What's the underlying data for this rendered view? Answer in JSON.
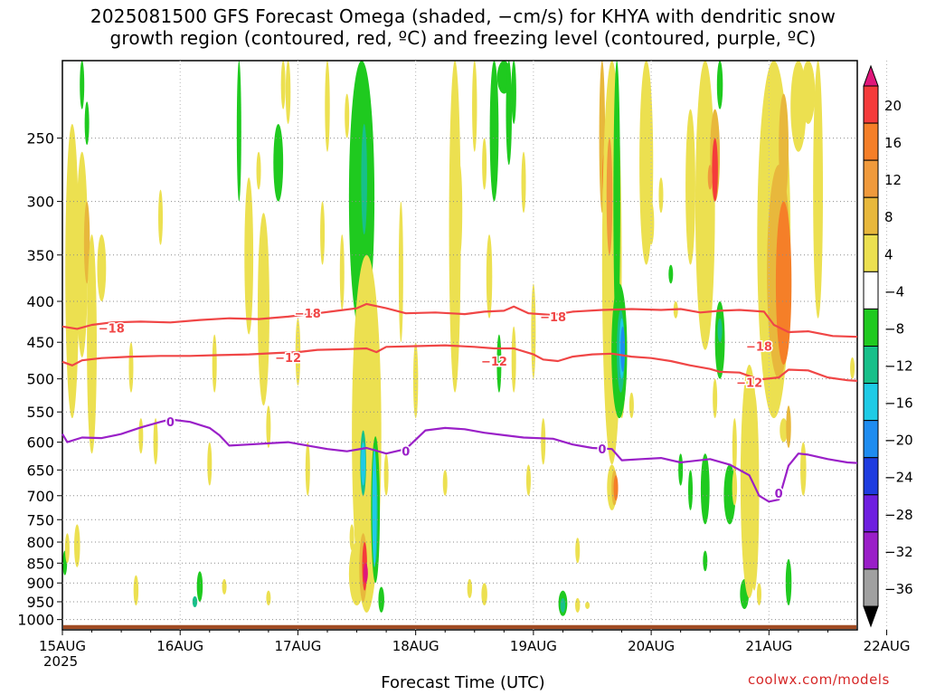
{
  "title_line1": "2025081500 GFS Forecast Omega (shaded, −cm/s) for KHYA with dendritic snow",
  "title_line2": "growth region (contoured, red, ºC) and freezing level (contoured, purple, ºC)",
  "credit": "coolwx.com/models",
  "chart_data": {
    "type": "heatmap",
    "title": "2025081500 GFS Forecast Omega (shaded, −cm/s) for KHYA with dendritic snow growth region (contoured, red, ºC) and freezing level (contoured, purple, ºC)",
    "xlabel": "Forecast Time (UTC)",
    "x_sublabel": "2025",
    "x_ticks": [
      "15AUG",
      "16AUG",
      "17AUG",
      "18AUG",
      "19AUG",
      "20AUG",
      "21AUG",
      "22AUG"
    ],
    "x_range_hours": [
      0,
      162
    ],
    "y_ticks": [
      250,
      300,
      350,
      400,
      450,
      500,
      550,
      600,
      650,
      700,
      750,
      800,
      850,
      900,
      950,
      1000
    ],
    "y_range_hPa": [
      200,
      1030
    ],
    "y_scale": "log (pressure, inverted)",
    "grid": true,
    "colorbar": {
      "labels": [
        "20",
        "16",
        "12",
        "8",
        "4",
        "−4",
        "−8",
        "−12",
        "−16",
        "−20",
        "−24",
        "−28",
        "−32",
        "−36"
      ],
      "colors": [
        "#e0177a",
        "#f53b3b",
        "#f57f28",
        "#f09a3c",
        "#e8b83c",
        "#ece050",
        "#ffffff",
        "#1fca1f",
        "#17c08a",
        "#1ecbe6",
        "#1e8cf0",
        "#1e3ce0",
        "#6e1ee0",
        "#9a1ec8",
        "#a0a0a0",
        "#000000"
      ]
    },
    "contours": [
      {
        "name": "dendritic -18",
        "color": "#f04646",
        "label": "−18",
        "points": [
          [
            0,
            430
          ],
          [
            3,
            433
          ],
          [
            6,
            428
          ],
          [
            10,
            425
          ],
          [
            16,
            424
          ],
          [
            22,
            425
          ],
          [
            28,
            422
          ],
          [
            34,
            420
          ],
          [
            40,
            421
          ],
          [
            46,
            418
          ],
          [
            52,
            414
          ],
          [
            56,
            411
          ],
          [
            60,
            408
          ],
          [
            62,
            403
          ],
          [
            66,
            408
          ],
          [
            70,
            414
          ],
          [
            76,
            413
          ],
          [
            82,
            415
          ],
          [
            86,
            412
          ],
          [
            90,
            411
          ],
          [
            92,
            406
          ],
          [
            95,
            414
          ],
          [
            100,
            416
          ],
          [
            104,
            412
          ],
          [
            110,
            410
          ],
          [
            116,
            409
          ],
          [
            122,
            410
          ],
          [
            126,
            409
          ],
          [
            130,
            413
          ],
          [
            134,
            411
          ],
          [
            138,
            410
          ],
          [
            143,
            412
          ],
          [
            145,
            428
          ],
          [
            148,
            437
          ],
          [
            152,
            436
          ],
          [
            157,
            442
          ],
          [
            162,
            443
          ]
        ],
        "labels": [
          [
            10,
            432
          ],
          [
            50,
            414
          ],
          [
            100,
            418
          ],
          [
            142,
            455
          ]
        ]
      },
      {
        "name": "dendritic -12",
        "color": "#f04646",
        "label": "−12",
        "points": [
          [
            0,
            476
          ],
          [
            2,
            481
          ],
          [
            4,
            474
          ],
          [
            8,
            471
          ],
          [
            14,
            469
          ],
          [
            20,
            468
          ],
          [
            26,
            468
          ],
          [
            32,
            467
          ],
          [
            38,
            466
          ],
          [
            44,
            464
          ],
          [
            48,
            463
          ],
          [
            52,
            460
          ],
          [
            58,
            459
          ],
          [
            62,
            458
          ],
          [
            64,
            463
          ],
          [
            66,
            456
          ],
          [
            72,
            455
          ],
          [
            78,
            454
          ],
          [
            84,
            456
          ],
          [
            88,
            458
          ],
          [
            92,
            458
          ],
          [
            96,
            466
          ],
          [
            98,
            473
          ],
          [
            101,
            475
          ],
          [
            104,
            469
          ],
          [
            108,
            466
          ],
          [
            112,
            465
          ],
          [
            116,
            469
          ],
          [
            120,
            471
          ],
          [
            124,
            475
          ],
          [
            128,
            481
          ],
          [
            132,
            486
          ],
          [
            134,
            490
          ],
          [
            138,
            491
          ],
          [
            142,
            501
          ],
          [
            146,
            498
          ],
          [
            148,
            487
          ],
          [
            152,
            488
          ],
          [
            156,
            498
          ],
          [
            160,
            502
          ],
          [
            162,
            503
          ]
        ],
        "labels": [
          [
            46,
            470
          ],
          [
            88,
            475
          ],
          [
            140,
            505
          ]
        ]
      },
      {
        "name": "freezing level 0",
        "color": "#9a20c8",
        "label": "0",
        "points": [
          [
            0,
            586
          ],
          [
            1,
            600
          ],
          [
            4,
            592
          ],
          [
            8,
            593
          ],
          [
            12,
            586
          ],
          [
            16,
            575
          ],
          [
            20,
            566
          ],
          [
            22,
            562
          ],
          [
            26,
            566
          ],
          [
            30,
            576
          ],
          [
            32,
            588
          ],
          [
            34,
            606
          ],
          [
            38,
            604
          ],
          [
            42,
            602
          ],
          [
            46,
            600
          ],
          [
            50,
            606
          ],
          [
            54,
            612
          ],
          [
            58,
            616
          ],
          [
            62,
            610
          ],
          [
            66,
            620
          ],
          [
            70,
            612
          ],
          [
            74,
            580
          ],
          [
            78,
            576
          ],
          [
            82,
            578
          ],
          [
            86,
            584
          ],
          [
            90,
            588
          ],
          [
            94,
            592
          ],
          [
            100,
            594
          ],
          [
            104,
            604
          ],
          [
            108,
            610
          ],
          [
            112,
            612
          ],
          [
            114,
            632
          ],
          [
            118,
            630
          ],
          [
            122,
            628
          ],
          [
            126,
            636
          ],
          [
            132,
            630
          ],
          [
            136,
            640
          ],
          [
            140,
            660
          ],
          [
            142,
            700
          ],
          [
            144,
            712
          ],
          [
            146,
            708
          ],
          [
            148,
            642
          ],
          [
            150,
            620
          ],
          [
            152,
            622
          ],
          [
            156,
            630
          ],
          [
            160,
            636
          ],
          [
            162,
            637
          ]
        ],
        "labels": [
          [
            22,
            566
          ],
          [
            70,
            616
          ],
          [
            110,
            612
          ],
          [
            146,
            695
          ]
        ]
      }
    ],
    "surface": {
      "color": "#a04b23",
      "from_hPa": 1016
    }
  }
}
